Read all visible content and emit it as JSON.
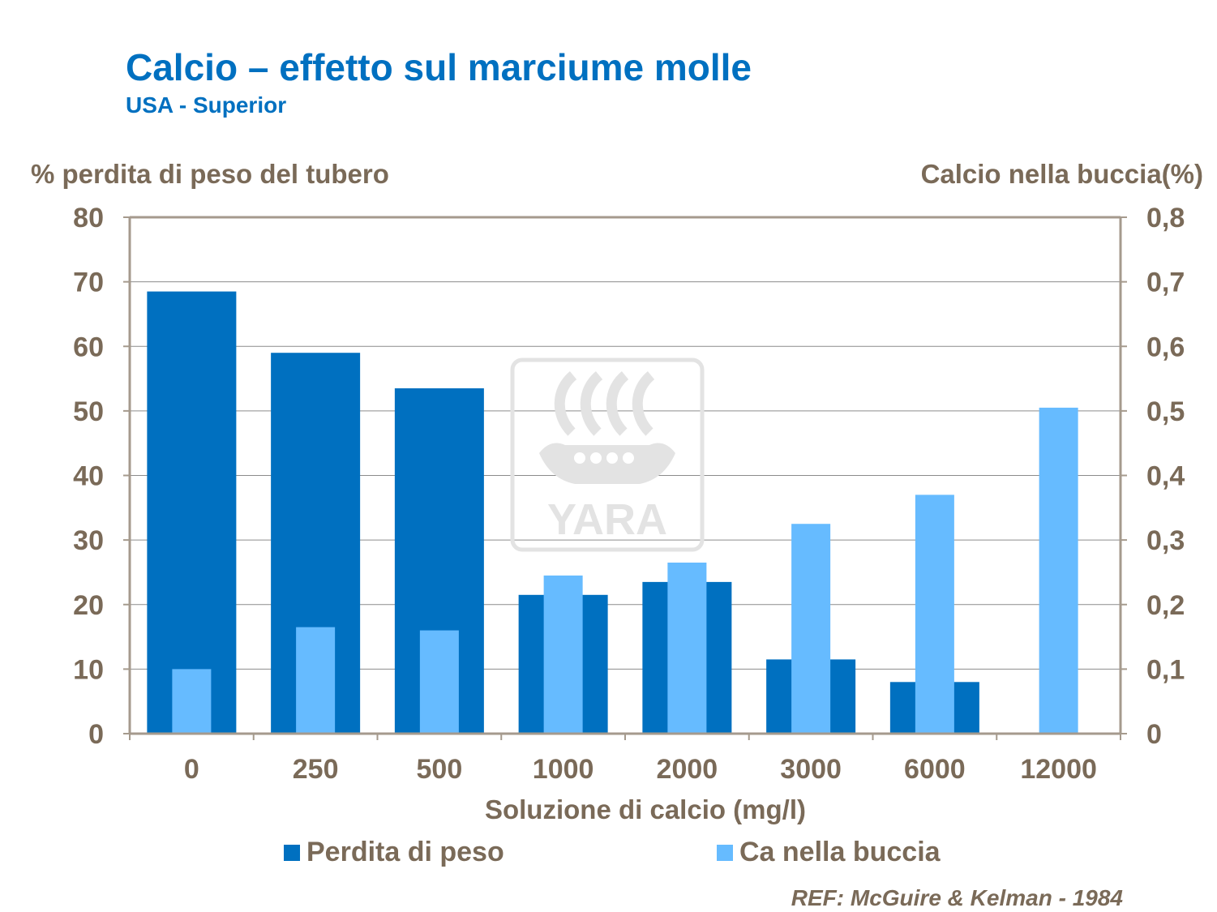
{
  "title": "Calcio – effetto sul marciume molle",
  "subtitle": "USA - Superior",
  "ylabel_left": "% perdita di peso del tubero",
  "ylabel_right": "Calcio nella buccia(%)",
  "xlabel": "Soluzione di calcio (mg/l)",
  "legend": [
    {
      "label": "Perdita di peso",
      "color": "#0070c0"
    },
    {
      "label": "Ca nella buccia",
      "color": "#66bbff"
    }
  ],
  "reference": "REF: McGuire & Kelman - 1984",
  "watermark": {
    "text": "YARA",
    "icon": "yara-viking-ship-logo",
    "color": "#e3e3e3"
  },
  "chart_data": {
    "type": "bar",
    "categories": [
      "0",
      "250",
      "500",
      "1000",
      "2000",
      "3000",
      "6000",
      "12000"
    ],
    "series": [
      {
        "name": "Perdita di peso",
        "axis": "left",
        "color": "#0070c0",
        "values": [
          68.5,
          59,
          53.5,
          21.5,
          23.5,
          11.5,
          8,
          0
        ]
      },
      {
        "name": "Ca nella buccia",
        "axis": "right",
        "color": "#66bbff",
        "values": [
          0.1,
          0.165,
          0.16,
          0.245,
          0.265,
          0.325,
          0.37,
          0.505
        ]
      }
    ],
    "y_left": {
      "ylim": [
        0,
        80
      ],
      "ticks": [
        "0",
        "10",
        "20",
        "30",
        "40",
        "50",
        "60",
        "70",
        "80"
      ]
    },
    "y_right": {
      "ylim": [
        0,
        0.8
      ],
      "ticks": [
        "0",
        "0,1",
        "0,2",
        "0,3",
        "0,4",
        "0,5",
        "0,6",
        "0,7",
        "0,8"
      ]
    },
    "grid": true,
    "legend_position": "bottom"
  }
}
